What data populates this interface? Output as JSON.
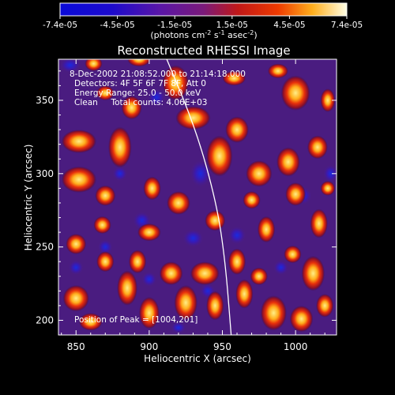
{
  "chart_data": {
    "type": "heatmap",
    "title": "Reconstructed RHESSI Image",
    "xlabel": "Heliocentric X (arcsec)",
    "ylabel": "Heliocentric Y (arcsec)",
    "xlim": [
      838,
      1028
    ],
    "ylim": [
      190,
      378
    ],
    "x_ticks": [
      850,
      900,
      950,
      1000
    ],
    "y_ticks": [
      200,
      250,
      300,
      350
    ],
    "colorbar": {
      "ticks": [
        "-7.4e-05",
        "-4.5e-05",
        "-1.5e-05",
        "1.5e-05",
        "4.5e-05",
        "7.4e-05"
      ],
      "range": [
        -7.4e-05,
        7.4e-05
      ],
      "units_label": "(photons cm",
      "units_exp1": "-2",
      "units_mid": " s",
      "units_exp2": "-1",
      "units_end": " asec",
      "units_exp3": "-2",
      "units_close": ")"
    },
    "annotations": [
      "8-Dec-2002 21:08:52.000 to 21:14:18.000",
      "Detectors: 4F 5F 6F 7F 8F, Att 0",
      "Energy Range: 25.0 - 50.0 keV",
      "Clean     Total counts: 4.06E+03"
    ],
    "peak_label": "Position of Peak = [1004,201]",
    "limb_curve": [
      [
        912,
        378
      ],
      [
        932,
        330
      ],
      [
        946,
        280
      ],
      [
        952,
        240
      ],
      [
        956,
        190
      ]
    ],
    "blobs": [
      [
        852,
        296,
        12,
        9
      ],
      [
        852,
        322,
        12,
        8
      ],
      [
        880,
        318,
        8,
        14
      ],
      [
        888,
        345,
        7,
        8
      ],
      [
        862,
        375,
        6,
        5
      ],
      [
        870,
        355,
        6,
        5
      ],
      [
        893,
        378,
        8,
        5
      ],
      [
        918,
        362,
        9,
        12
      ],
      [
        930,
        338,
        12,
        8
      ],
      [
        948,
        312,
        9,
        14
      ],
      [
        960,
        330,
        8,
        9
      ],
      [
        975,
        300,
        9,
        9
      ],
      [
        995,
        308,
        8,
        10
      ],
      [
        1015,
        318,
        7,
        8
      ],
      [
        1000,
        286,
        7,
        8
      ],
      [
        1016,
        266,
        6,
        10
      ],
      [
        1000,
        355,
        10,
        12
      ],
      [
        988,
        370,
        7,
        5
      ],
      [
        1022,
        350,
        5,
        8
      ],
      [
        870,
        285,
        7,
        7
      ],
      [
        902,
        290,
        6,
        8
      ],
      [
        920,
        280,
        8,
        8
      ],
      [
        945,
        268,
        7,
        7
      ],
      [
        970,
        282,
        6,
        6
      ],
      [
        980,
        262,
        6,
        9
      ],
      [
        960,
        240,
        6,
        9
      ],
      [
        938,
        232,
        10,
        8
      ],
      [
        915,
        232,
        8,
        8
      ],
      [
        892,
        240,
        6,
        8
      ],
      [
        870,
        240,
        6,
        7
      ],
      [
        850,
        252,
        7,
        7
      ],
      [
        900,
        260,
        8,
        6
      ],
      [
        885,
        222,
        7,
        12
      ],
      [
        900,
        205,
        7,
        11
      ],
      [
        925,
        212,
        8,
        12
      ],
      [
        945,
        210,
        6,
        10
      ],
      [
        965,
        218,
        6,
        10
      ],
      [
        975,
        230,
        6,
        6
      ],
      [
        985,
        205,
        9,
        12
      ],
      [
        1004,
        201,
        8,
        9
      ],
      [
        1012,
        232,
        8,
        12
      ],
      [
        1020,
        210,
        6,
        8
      ],
      [
        850,
        215,
        9,
        9
      ],
      [
        860,
        199,
        8,
        6
      ],
      [
        998,
        245,
        6,
        6
      ],
      [
        868,
        265,
        6,
        6
      ],
      [
        1022,
        290,
        5,
        5
      ],
      [
        958,
        365,
        8,
        5
      ]
    ],
    "wells": [
      [
        846,
        374,
        7,
        5
      ],
      [
        905,
        352,
        6,
        6
      ],
      [
        880,
        300,
        5,
        5
      ],
      [
        935,
        300,
        7,
        9
      ],
      [
        1005,
        285,
        6,
        6
      ],
      [
        1024,
        300,
        5,
        6
      ],
      [
        895,
        268,
        6,
        6
      ],
      [
        930,
        256,
        7,
        6
      ],
      [
        960,
        258,
        6,
        6
      ],
      [
        990,
        236,
        5,
        5
      ],
      [
        870,
        250,
        5,
        5
      ],
      [
        940,
        220,
        5,
        5
      ],
      [
        900,
        228,
        5,
        5
      ],
      [
        850,
        236,
        5,
        5
      ],
      [
        920,
        195,
        5,
        4
      ]
    ]
  }
}
